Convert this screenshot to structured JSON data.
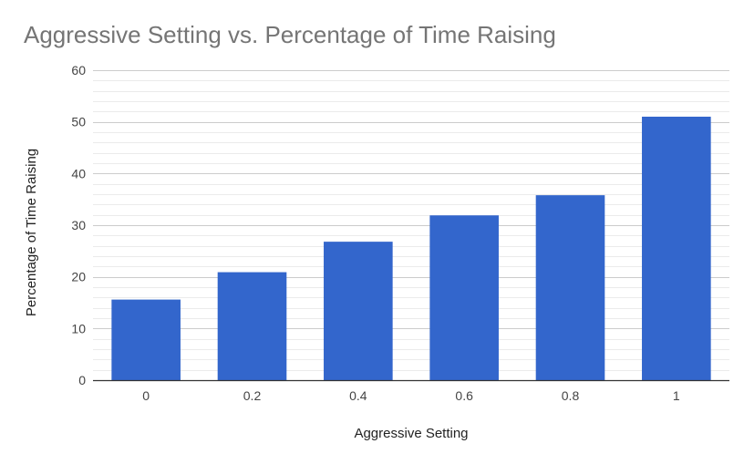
{
  "chart_data": {
    "type": "bar",
    "title": "Aggressive Setting vs. Percentage of Time Raising",
    "xlabel": "Aggressive Setting",
    "ylabel": "Percentage of Time Raising",
    "categories": [
      "0",
      "0.2",
      "0.4",
      "0.6",
      "0.8",
      "1"
    ],
    "values": [
      15.6,
      20.9,
      26.8,
      31.9,
      35.8,
      51.0
    ],
    "ylim": [
      0,
      60
    ],
    "yticks": [
      "0",
      "10",
      "20",
      "30",
      "40",
      "50",
      "60"
    ],
    "grid": true,
    "legend": "none",
    "colors": {
      "bar": "#3366cc",
      "title": "#757575"
    }
  }
}
